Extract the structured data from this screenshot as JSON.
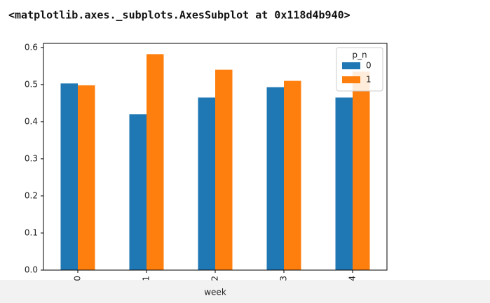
{
  "output_text": "<matplotlib.axes._subplots.AxesSubplot at 0x118d4b940>",
  "chart_data": {
    "type": "bar",
    "x_label": "week",
    "categories": [
      "0",
      "1",
      "2",
      "3",
      "4"
    ],
    "series": [
      {
        "name": "0",
        "color": "#1f77b4",
        "values": [
          0.503,
          0.42,
          0.465,
          0.493,
          0.465
        ]
      },
      {
        "name": "1",
        "color": "#ff7f0e",
        "values": [
          0.498,
          0.582,
          0.54,
          0.51,
          0.535
        ]
      }
    ],
    "ylim": [
      0,
      0.611
    ],
    "yticks": [
      {
        "value": 0,
        "label": "0.0"
      },
      0.1,
      0.2,
      0.3,
      0.4,
      0.5,
      0.6
    ],
    "legend": "upper right",
    "legend_title": "p_n",
    "grid": false
  }
}
